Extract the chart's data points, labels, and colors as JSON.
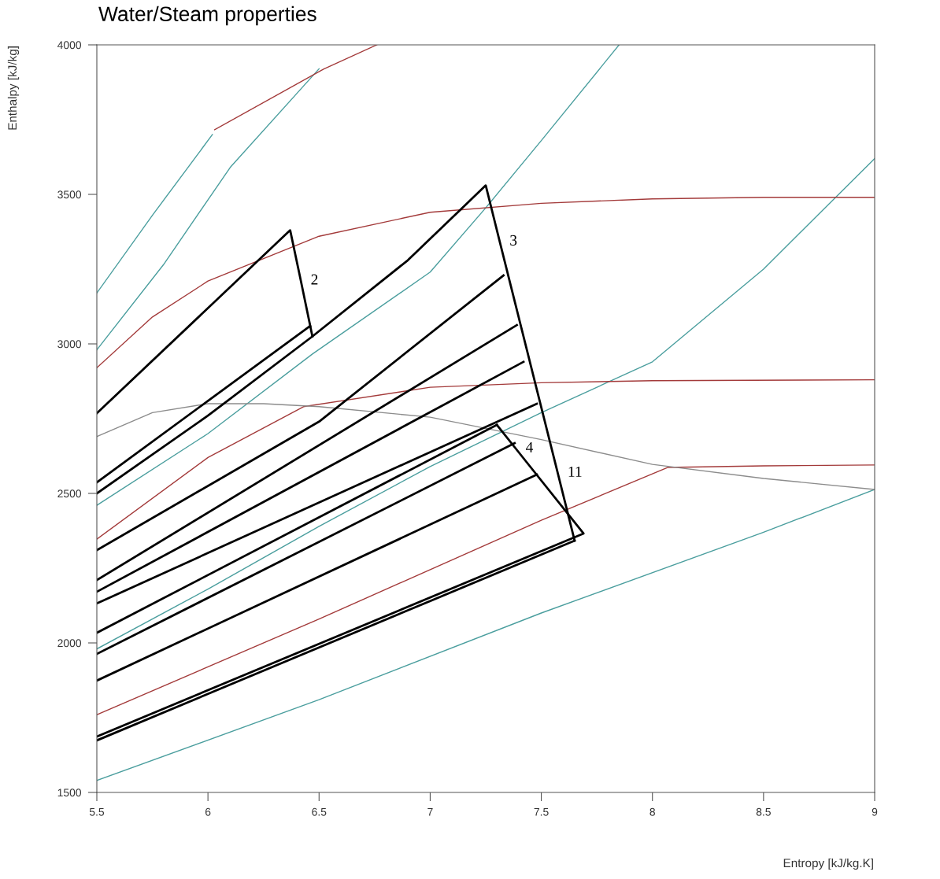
{
  "chart_data": {
    "type": "line",
    "title": "Water/Steam properties",
    "xlabel": "Entropy [kJ/kg.K]",
    "ylabel": "Enthalpy [kJ/kg]",
    "xlim": [
      5.5,
      9
    ],
    "ylim": [
      1500,
      4000
    ],
    "xticks": [
      5.5,
      6,
      6.5,
      7,
      7.5,
      8,
      8.5,
      9
    ],
    "yticks": [
      1500,
      2000,
      2500,
      3000,
      3500,
      4000
    ],
    "grid": false,
    "marker": "none",
    "line_style": "solid",
    "series": [
      {
        "color": "#4a9e9e",
        "x": [
          5.5,
          5.75,
          6.02
        ],
        "values": [
          3170,
          3430,
          3700
        ]
      },
      {
        "color": "#4a9e9e",
        "x": [
          5.5,
          5.8,
          6.1,
          6.5
        ],
        "values": [
          2980,
          3265,
          3590,
          3920
        ]
      },
      {
        "color": "#4a9e9e",
        "x": [
          5.5,
          6.0,
          6.47,
          7.0,
          7.25,
          7.5,
          7.85
        ],
        "values": [
          2460,
          2700,
          2966,
          3240,
          3455,
          3680,
          4000
        ]
      },
      {
        "color": "#4a9e9e",
        "x": [
          5.5,
          6.0,
          6.5,
          7.0,
          7.5,
          8.0,
          8.5,
          9.0
        ],
        "values": [
          1980,
          2180,
          2390,
          2590,
          2770,
          2940,
          3250,
          3620
        ]
      },
      {
        "color": "#4a9e9e",
        "x": [
          5.5,
          6.5,
          7.5,
          8.5,
          9.0
        ],
        "values": [
          1540,
          1810,
          2100,
          2370,
          2513
        ]
      },
      {
        "color": "#a33a3a",
        "x": [
          6.03,
          6.52,
          6.76
        ],
        "values": [
          3716,
          3919,
          4000
        ]
      },
      {
        "color": "#a33a3a",
        "x": [
          5.5,
          5.75,
          6.0,
          6.5,
          7.0,
          7.5,
          8.0,
          8.5,
          9.0
        ],
        "values": [
          2920,
          3090,
          3210,
          3360,
          3440,
          3470,
          3485,
          3490,
          3490
        ]
      },
      {
        "color": "#a33a3a",
        "x": [
          5.5,
          6.0,
          6.43,
          7.0,
          7.5,
          8.0,
          9.0
        ],
        "values": [
          2347,
          2620,
          2790,
          2855,
          2870,
          2877,
          2880
        ]
      },
      {
        "color": "#a33a3a",
        "x": [
          5.5,
          6.5,
          7.5,
          8.07,
          8.5,
          9.0
        ],
        "values": [
          1760,
          2080,
          2410,
          2587,
          2592,
          2595
        ]
      },
      {
        "color": "#8c8c8c",
        "x": [
          5.5,
          5.75,
          6.0,
          6.25,
          6.5,
          7.0,
          7.5,
          8.0,
          8.5,
          9.0
        ],
        "values": [
          2690,
          2770,
          2800,
          2800,
          2790,
          2755,
          2680,
          2597,
          2550,
          2513
        ]
      },
      {
        "color": "#000000",
        "x": [
          5.5,
          6.37,
          6.418,
          6.47
        ],
        "values": [
          2768,
          3380,
          3211,
          3025
        ]
      },
      {
        "color": "#000000",
        "x": [
          5.5,
          6.46
        ],
        "values": [
          2537,
          3060
        ]
      },
      {
        "color": "#000000",
        "x": [
          5.5,
          6.0,
          6.47,
          6.9,
          7.25,
          7.313,
          7.574,
          7.65
        ],
        "values": [
          2500,
          2760,
          3025,
          3280,
          3530,
          3342,
          2568,
          2342
        ]
      },
      {
        "color": "#000000",
        "x": [
          5.5,
          6.5,
          7.33
        ],
        "values": [
          2310,
          2740,
          3229
        ]
      },
      {
        "color": "#000000",
        "x": [
          5.5,
          7.39
        ],
        "values": [
          2210,
          3063
        ]
      },
      {
        "color": "#000000",
        "x": [
          5.5,
          7.42
        ],
        "values": [
          2171,
          2940
        ]
      },
      {
        "color": "#000000",
        "x": [
          5.5,
          7.48
        ],
        "values": [
          2132,
          2800
        ]
      },
      {
        "color": "#000000",
        "x": [
          5.5,
          7.3
        ],
        "values": [
          2034,
          2729
        ]
      },
      {
        "color": "#000000",
        "x": [
          5.5,
          7.38
        ],
        "values": [
          1963,
          2668
        ]
      },
      {
        "color": "#000000",
        "x": [
          5.5,
          7.48
        ],
        "values": [
          1874,
          2563
        ]
      },
      {
        "color": "#000000",
        "x": [
          7.3,
          7.385,
          7.69,
          5.5
        ],
        "values": [
          2729,
          2650,
          2366,
          1687
        ]
      },
      {
        "color": "#000000",
        "x": [
          5.5,
          7.65
        ],
        "values": [
          1674,
          2342
        ]
      }
    ],
    "annotations": [
      {
        "text": "2",
        "x": 6.418,
        "y": 3211
      },
      {
        "text": "3",
        "x": 7.313,
        "y": 3342
      },
      {
        "text": "4",
        "x": 7.385,
        "y": 2650
      },
      {
        "text": "11",
        "x": 7.574,
        "y": 2568
      }
    ]
  }
}
